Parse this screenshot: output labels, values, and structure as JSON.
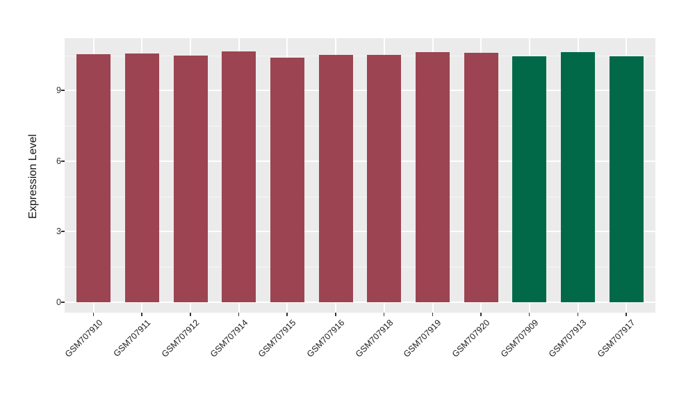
{
  "chart_data": {
    "type": "bar",
    "title": "",
    "xlabel": "",
    "ylabel": "Expression Level",
    "categories": [
      "GSM707910",
      "GSM707911",
      "GSM707912",
      "GSM707914",
      "GSM707915",
      "GSM707916",
      "GSM707918",
      "GSM707919",
      "GSM707920",
      "GSM707909",
      "GSM707913",
      "GSM707917"
    ],
    "values": [
      10.55,
      10.58,
      10.48,
      10.67,
      10.4,
      10.51,
      10.52,
      10.64,
      10.62,
      10.46,
      10.65,
      10.45
    ],
    "bar_colors": [
      "#9C4451",
      "#9C4451",
      "#9C4451",
      "#9C4451",
      "#9C4451",
      "#9C4451",
      "#9C4451",
      "#9C4451",
      "#9C4451",
      "#016948",
      "#016948",
      "#016948"
    ],
    "group_colors": {
      "maroon_group": "#9C4451",
      "green_group": "#016948"
    },
    "yticks": [
      0,
      3,
      6,
      9
    ],
    "yticks_minor": [
      1.5,
      4.5,
      7.5,
      10.5
    ],
    "ylim": [
      -0.53,
      11.23
    ],
    "bar_width_fraction": 0.7,
    "x_tick_angle": 45,
    "legend": false,
    "grid": true,
    "panel_background": "#EBEBEB",
    "grid_color": "#FFFFFF",
    "tick_color": "#333333",
    "label_color": "#1A1A1A"
  }
}
